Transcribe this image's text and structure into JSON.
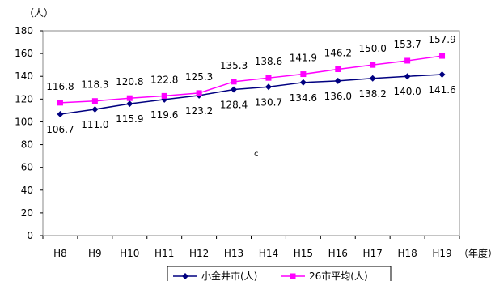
{
  "chart_data": {
    "type": "line",
    "categories": [
      "H8",
      "H9",
      "H10",
      "H11",
      "H12",
      "H13",
      "H14",
      "H15",
      "H16",
      "H17",
      "H18",
      "H19"
    ],
    "y_unit_label": "（人）",
    "x_unit_label": "（年度）",
    "annotation": "c",
    "ylim": [
      0,
      180
    ],
    "y_ticks": [
      0,
      20,
      40,
      60,
      80,
      100,
      120,
      140,
      160,
      180
    ],
    "grid": false,
    "legend_position": "bottom",
    "series": [
      {
        "name": "小金井市(人)",
        "color": "#000080",
        "marker": "diamond",
        "label_position": "below",
        "values": [
          106.7,
          111.0,
          115.9,
          119.6,
          123.2,
          128.4,
          130.7,
          134.6,
          136.0,
          138.2,
          140.0,
          141.6
        ],
        "labels": [
          "106.7",
          "111.0",
          "115.9",
          "119.6",
          "123.2",
          "128.4",
          "130.7",
          "134.6",
          "136.0",
          "138.2",
          "140.0",
          "141.6"
        ]
      },
      {
        "name": "26市平均(人)",
        "color": "#ff00ff",
        "marker": "square",
        "label_position": "above",
        "values": [
          116.8,
          118.3,
          120.8,
          122.8,
          125.3,
          135.3,
          138.6,
          141.9,
          146.2,
          150.0,
          153.7,
          157.9
        ],
        "labels": [
          "116.8",
          "118.3",
          "120.8",
          "122.8",
          "125.3",
          "135.3",
          "138.6",
          "141.9",
          "146.2",
          "150.0",
          "153.7",
          "157.9"
        ]
      }
    ]
  }
}
